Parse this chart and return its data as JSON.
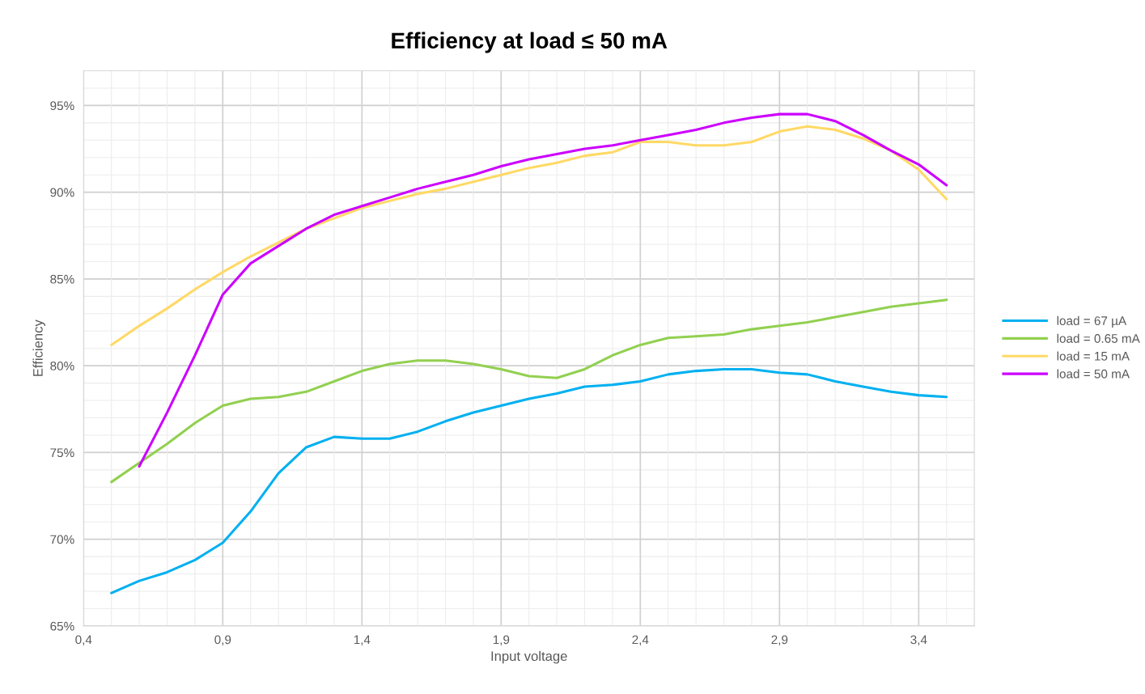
{
  "chart_data": {
    "type": "line",
    "title": "Efficiency at load ≤ 50 mA",
    "xlabel": "Input voltage",
    "ylabel": "Efficiency",
    "x": [
      0.5,
      0.6,
      0.7,
      0.8,
      0.9,
      1.0,
      1.1,
      1.2,
      1.3,
      1.4,
      1.5,
      1.6,
      1.7,
      1.8,
      1.9,
      2.0,
      2.1,
      2.2,
      2.3,
      2.4,
      2.5,
      2.6,
      2.7,
      2.8,
      2.9,
      3.0,
      3.1,
      3.2,
      3.3,
      3.4,
      3.5
    ],
    "series": [
      {
        "name": "load = 67 µA",
        "color": "#00b0f0",
        "values": [
          66.9,
          67.6,
          68.1,
          68.8,
          69.8,
          71.6,
          73.8,
          75.3,
          75.9,
          75.8,
          75.8,
          76.2,
          76.8,
          77.3,
          77.7,
          78.1,
          78.4,
          78.8,
          78.9,
          79.1,
          79.5,
          79.7,
          79.8,
          79.8,
          79.6,
          79.5,
          79.1,
          78.8,
          78.5,
          78.3,
          78.2
        ]
      },
      {
        "name": "load = 0.65 mA",
        "color": "#92d050",
        "values": [
          73.3,
          74.4,
          75.5,
          76.7,
          77.7,
          78.1,
          78.2,
          78.5,
          79.1,
          79.7,
          80.1,
          80.3,
          80.3,
          80.1,
          79.8,
          79.4,
          79.3,
          79.8,
          80.6,
          81.2,
          81.6,
          81.7,
          81.8,
          82.1,
          82.3,
          82.5,
          82.8,
          83.1,
          83.4,
          83.6,
          83.8
        ]
      },
      {
        "name": "load = 15 mA",
        "color": "#ffd966",
        "values": [
          81.2,
          82.3,
          83.3,
          84.4,
          85.4,
          86.3,
          87.1,
          87.9,
          88.5,
          89.1,
          89.5,
          89.9,
          90.2,
          90.6,
          91.0,
          91.4,
          91.7,
          92.1,
          92.3,
          92.9,
          92.9,
          92.7,
          92.7,
          92.9,
          93.5,
          93.8,
          93.6,
          93.1,
          92.4,
          91.3,
          89.6
        ]
      },
      {
        "name": "load = 50 mA",
        "color": "#cc00ff",
        "values": [
          null,
          74.2,
          77.3,
          80.6,
          84.1,
          85.9,
          86.9,
          87.9,
          88.7,
          89.2,
          89.7,
          90.2,
          90.6,
          91.0,
          91.5,
          91.9,
          92.2,
          92.5,
          92.7,
          93.0,
          93.3,
          93.6,
          94.0,
          94.3,
          94.5,
          94.5,
          94.1,
          93.3,
          92.4,
          91.6,
          90.4
        ]
      }
    ],
    "xlim": [
      0.4,
      3.6
    ],
    "xticks": [
      {
        "value": 0.4,
        "label": "0,4"
      },
      {
        "value": 0.9,
        "label": "0,9"
      },
      {
        "value": 1.4,
        "label": "1,4"
      },
      {
        "value": 1.9,
        "label": "1,9"
      },
      {
        "value": 2.4,
        "label": "2,4"
      },
      {
        "value": 2.9,
        "label": "2,9"
      },
      {
        "value": 3.4,
        "label": "3,4"
      }
    ],
    "ylim": [
      65,
      97
    ],
    "yticks": [
      {
        "value": 65,
        "label": "65%"
      },
      {
        "value": 70,
        "label": "70%"
      },
      {
        "value": 75,
        "label": "75%"
      },
      {
        "value": 80,
        "label": "80%"
      },
      {
        "value": 85,
        "label": "85%"
      },
      {
        "value": 90,
        "label": "90%"
      },
      {
        "value": 95,
        "label": "95%"
      }
    ],
    "grid": true,
    "legend": "right",
    "marker": "none",
    "line_style": "solid"
  }
}
